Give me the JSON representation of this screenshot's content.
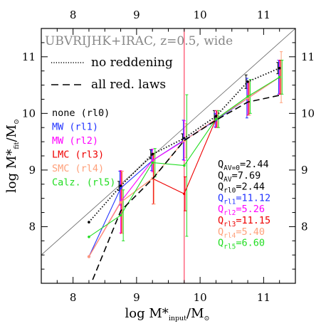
{
  "chart_data": {
    "type": "line",
    "title": "UBVRIJHK+IRAC, z=0.5, wide",
    "xlabel": "log M*input/M⊙",
    "ylabel": "log M*fit/M⊙",
    "xlim": [
      7.5,
      11.5
    ],
    "ylim": [
      7.0,
      11.5
    ],
    "xticks": [
      8,
      9,
      10,
      11
    ],
    "yticks": [
      8,
      9,
      10,
      11
    ],
    "top_ticks": [
      8,
      9,
      10,
      11
    ],
    "right_ticks": [
      8,
      9,
      10,
      11
    ],
    "grid": false,
    "reference_line": "one-to-one",
    "vertical_marker_x": 9.75,
    "x": [
      8.25,
      8.75,
      9.25,
      9.75,
      10.25,
      10.75,
      11.25
    ],
    "linestyle_legend": [
      {
        "label": "no reddening",
        "style": "dotted"
      },
      {
        "label": "all red. laws",
        "style": "dashed"
      }
    ],
    "series": [
      {
        "name": "none (rl0)",
        "color": "#000000",
        "dash": "dotted",
        "values": [
          8.08,
          8.72,
          9.28,
          9.56,
          9.95,
          10.56,
          10.8
        ],
        "err": [
          0.0,
          0.08,
          0.08,
          0.08,
          0.1,
          0.12,
          0.1
        ]
      },
      {
        "name": "MW (rl1)",
        "color": "#2233ff",
        "dash": "solid",
        "values": [
          7.47,
          8.68,
          9.17,
          9.53,
          9.88,
          10.27,
          10.64
        ],
        "err": [
          0.0,
          0.3,
          0.18,
          0.35,
          0.12,
          0.35,
          0.3
        ]
      },
      {
        "name": "MW (rl2)",
        "color": "#ff00ff",
        "dash": "solid",
        "values": [
          7.47,
          8.44,
          9.17,
          9.52,
          9.9,
          10.27,
          10.64
        ],
        "err": [
          0.0,
          0.55,
          0.2,
          0.35,
          0.15,
          0.3,
          0.3
        ]
      },
      {
        "name": "LMC (rl3)",
        "color": "#ee0000",
        "dash": "solid",
        "values": [
          7.47,
          8.43,
          8.85,
          8.58,
          9.9,
          10.27,
          10.64
        ],
        "err": [
          0.0,
          0.55,
          0.45,
          0.3,
          0.15,
          0.3,
          0.3
        ]
      },
      {
        "name": "SMC (rl4)",
        "color": "#ffa07a",
        "dash": "solid",
        "values": [
          7.47,
          8.43,
          8.85,
          9.52,
          9.9,
          10.27,
          10.64
        ],
        "err": [
          0.0,
          0.55,
          0.45,
          0.3,
          0.15,
          0.3,
          0.45
        ]
      },
      {
        "name": "Calz. (rl5)",
        "color": "#22dd22",
        "dash": "solid",
        "values": [
          7.82,
          8.2,
          9.13,
          9.08,
          9.9,
          10.3,
          10.64
        ],
        "err": [
          0.0,
          0.45,
          0.25,
          1.25,
          0.15,
          0.3,
          0.3
        ]
      },
      {
        "name": "all red. laws",
        "color": "#000000",
        "dash": "dashed",
        "values": [
          6.9,
          8.28,
          8.84,
          9.52,
          9.88,
          10.2,
          10.32
        ],
        "err": [
          0.0,
          0.0,
          0.0,
          0.0,
          0.0,
          0.0,
          0.0
        ]
      }
    ],
    "q_values": [
      {
        "label": "Q",
        "sub": "AV=0",
        "value": "=2.44",
        "color": "#000000"
      },
      {
        "label": "Q",
        "sub": "AV",
        "value": "=7.69",
        "color": "#000000"
      },
      {
        "label": "Q",
        "sub": "rl0",
        "value": "=2.44",
        "color": "#000000"
      },
      {
        "label": "Q",
        "sub": "rl1",
        "value": "=11.12",
        "color": "#2233ff"
      },
      {
        "label": "Q",
        "sub": "rl2",
        "value": "=5.26",
        "color": "#ff00ff"
      },
      {
        "label": "Q",
        "sub": "rl3",
        "value": "=11.15",
        "color": "#ee0000"
      },
      {
        "label": "Q",
        "sub": "rl4",
        "value": "=5.40",
        "color": "#ffa07a"
      },
      {
        "label": "Q",
        "sub": "rl5",
        "value": "=6.60",
        "color": "#22dd22"
      }
    ]
  }
}
